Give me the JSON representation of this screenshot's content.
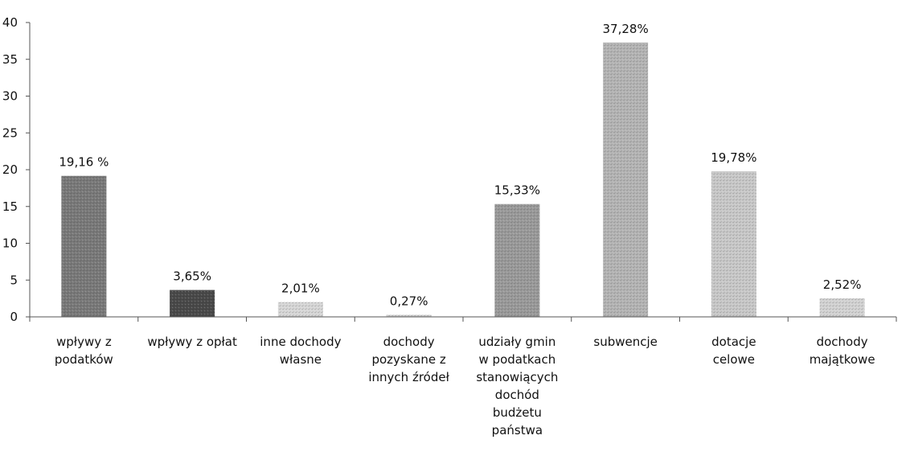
{
  "chart_data": {
    "type": "bar",
    "categories": [
      [
        "wpływy z",
        "podatków"
      ],
      [
        "wpływy z opłat"
      ],
      [
        "inne dochody",
        "własne"
      ],
      [
        "dochody",
        "pozyskane z",
        "innych źródeł"
      ],
      [
        "udziały gmin",
        "w podatkach",
        "stanowiących",
        "dochód",
        "budżetu",
        "państwa"
      ],
      [
        "subwencje"
      ],
      [
        "dotacje",
        "celowe"
      ],
      [
        "dochody",
        "majątkowe"
      ]
    ],
    "values": [
      19.16,
      3.65,
      2.01,
      0.27,
      15.33,
      37.28,
      19.78,
      2.52
    ],
    "data_labels": [
      "19,16 %",
      "3,65%",
      "2,01%",
      "0,27%",
      "15,33%",
      "37,28%",
      "19,78%",
      "2,52%"
    ],
    "bar_colors": [
      "#7a7a7a",
      "#4a4a4a",
      "#d6d6d6",
      "#cfcfcf",
      "#9a9a9a",
      "#b4b4b4",
      "#c8c8c8",
      "#d2d2d2"
    ],
    "ylim": [
      0,
      40
    ],
    "yticks": [
      "0",
      "5",
      "10",
      "15",
      "20",
      "25",
      "30",
      "35",
      "40"
    ],
    "ytick_values": [
      0,
      5,
      10,
      15,
      20,
      25,
      30,
      35,
      40
    ],
    "title": "",
    "xlabel": "",
    "ylabel": "",
    "grid": false,
    "legend": false
  }
}
